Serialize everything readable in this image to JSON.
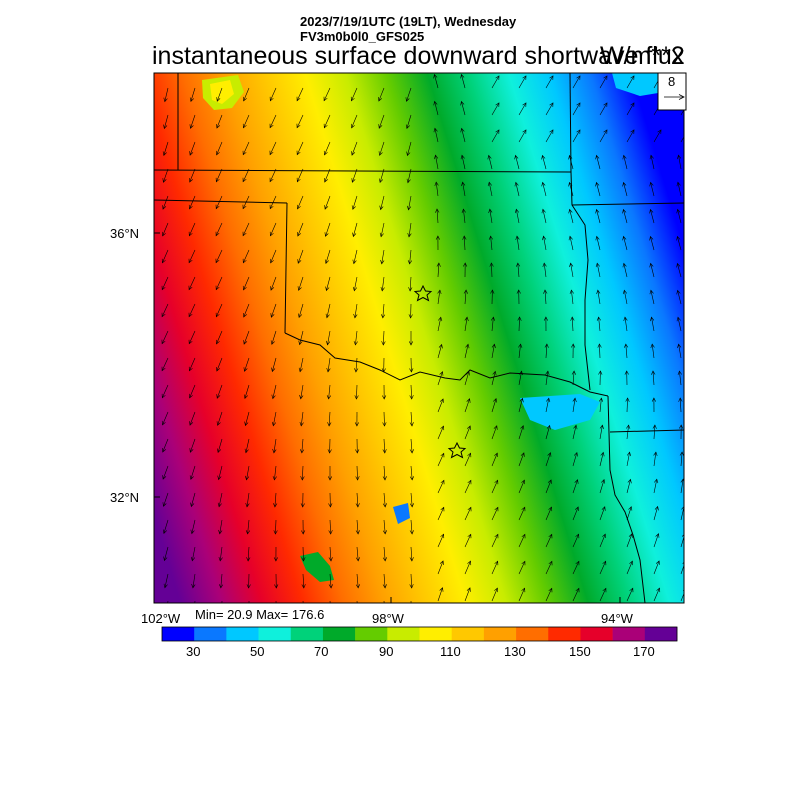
{
  "header": {
    "line1": "2023/7/19/1UTC (19LT), Wednesday",
    "line2": "FV3m0b0l0_GFS025"
  },
  "title": {
    "field": "instantaneous surface downward shortwave flux",
    "units": "W/m**2"
  },
  "vector_key": {
    "value": "8"
  },
  "axes": {
    "lat_labels": [
      "36°N",
      "32°N"
    ],
    "lon_labels": [
      "102°W",
      "98°W",
      "94°W"
    ]
  },
  "stats": {
    "text": "Min= 20.9 Max= 176.6"
  },
  "colorbar": {
    "labels": [
      "30",
      "50",
      "70",
      "90",
      "110",
      "130",
      "150",
      "170"
    ],
    "colors": [
      "#0000ff",
      "#0a78ff",
      "#00c8ff",
      "#0ff0dc",
      "#00d27a",
      "#00aa2a",
      "#64cc00",
      "#c8ec00",
      "#ffee00",
      "#ffc800",
      "#ffa000",
      "#ff6e00",
      "#ff2a00",
      "#e6002a",
      "#aa0078",
      "#640096"
    ]
  },
  "map": {
    "gradient_direction": "west-high-to-east-low",
    "markers": [
      "star",
      "star"
    ]
  }
}
